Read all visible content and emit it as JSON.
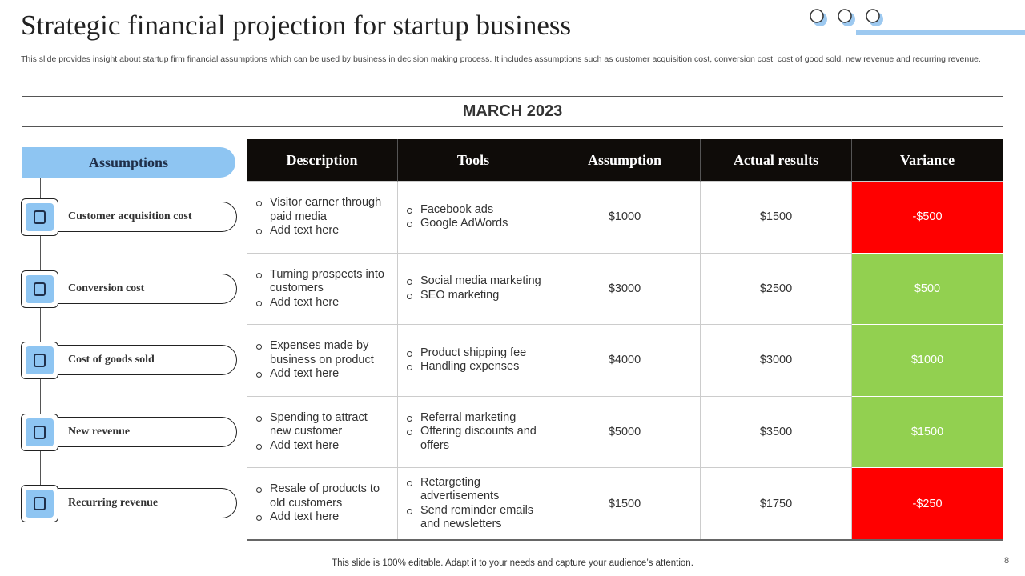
{
  "header": {
    "title": "Strategic financial projection for startup business",
    "subtitle": "This slide provides insight about startup firm financial assumptions which can be used by business in decision making process. It includes assumptions such as customer acquisition cost, conversion cost, cost of good sold, new revenue and recurring revenue."
  },
  "period": "MARCH 2023",
  "assumptions": {
    "heading": "Assumptions",
    "items": [
      "Customer acquisition cost",
      "Conversion cost",
      "Cost of goods sold",
      "New revenue",
      "Recurring revenue"
    ]
  },
  "table": {
    "columns": [
      "Description",
      "Tools",
      "Assumption",
      "Actual results",
      "Variance"
    ],
    "rows": [
      {
        "description": [
          "Visitor earner through paid media",
          "Add text here"
        ],
        "tools": [
          "Facebook ads",
          "Google AdWords"
        ],
        "assumption": "$1000",
        "actual": "$1500",
        "variance": "-$500",
        "variance_color": "#ff0000"
      },
      {
        "description": [
          "Turning prospects into customers",
          "Add text here"
        ],
        "tools": [
          "Social media marketing",
          "SEO marketing"
        ],
        "assumption": "$3000",
        "actual": "$2500",
        "variance": "$500",
        "variance_color": "#92d050"
      },
      {
        "description": [
          "Expenses made by business on product",
          "Add text here"
        ],
        "tools": [
          "Product shipping fee",
          "Handling expenses"
        ],
        "assumption": "$4000",
        "actual": "$3000",
        "variance": "$1000",
        "variance_color": "#92d050"
      },
      {
        "description": [
          "Spending to attract new customer",
          "Add text here"
        ],
        "tools": [
          "Referral marketing",
          "Offering discounts and offers"
        ],
        "assumption": "$5000",
        "actual": "$3500",
        "variance": "$1500",
        "variance_color": "#92d050"
      },
      {
        "description": [
          "Resale of products to old customers",
          "Add text here"
        ],
        "tools": [
          "Retargeting advertisements",
          "Send reminder emails and newsletters"
        ],
        "assumption": "$1500",
        "actual": "$1750",
        "variance": "-$250",
        "variance_color": "#ff0000"
      }
    ]
  },
  "footer": "This slide is 100% editable. Adapt it to your needs and capture your audience’s attention.",
  "page_number": "8"
}
